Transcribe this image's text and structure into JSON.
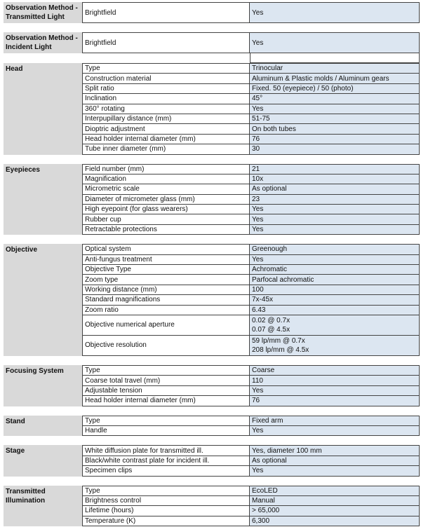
{
  "colors": {
    "label_bg": "#d9d9d9",
    "value_bg": "#dce6f1",
    "border": "#444444"
  },
  "sections": [
    {
      "label": "Observation Method - Transmitted Light",
      "rows": [
        {
          "k": "Brightfield",
          "v": "Yes",
          "tall": true
        }
      ]
    },
    {
      "label": "Observation Method - Incident Light",
      "rows": [
        {
          "k": "Brightfield",
          "v": "Yes",
          "tall": true
        }
      ],
      "spacer": true
    },
    {
      "label": "Head",
      "rows": [
        {
          "k": "Type",
          "v": "Trinocular"
        },
        {
          "k": "Construction material",
          "v": "Aluminum & Plastic molds / Aluminum gears"
        },
        {
          "k": "Split ratio",
          "v": "Fixed. 50 (eyepiece) / 50 (photo)"
        },
        {
          "k": "Inclination",
          "v": "45°"
        },
        {
          "k": "360° rotating",
          "v": "Yes"
        },
        {
          "k": "Interpupillary distance (mm)",
          "v": "51-75"
        },
        {
          "k": "Dioptric adjustment",
          "v": "On both tubes"
        },
        {
          "k": "Head holder internal diameter (mm)",
          "v": "76"
        },
        {
          "k": "Tube inner diameter (mm)",
          "v": "30"
        }
      ]
    },
    {
      "label": "Eyepieces",
      "rows": [
        {
          "k": "Field number (mm)",
          "v": "21"
        },
        {
          "k": "Magnification",
          "v": "10x"
        },
        {
          "k": "Micrometric scale",
          "v": "As optional"
        },
        {
          "k": "Diameter of micrometer glass (mm)",
          "v": "23"
        },
        {
          "k": "High eyepoint (for glass wearers)",
          "v": "Yes"
        },
        {
          "k": "Rubber cup",
          "v": "Yes"
        },
        {
          "k": "Retractable protections",
          "v": "Yes"
        }
      ]
    },
    {
      "label": "Objective",
      "rows": [
        {
          "k": "Optical system",
          "v": "Greenough"
        },
        {
          "k": "Anti-fungus treatment",
          "v": "Yes"
        },
        {
          "k": "Objective Type",
          "v": "Achromatic"
        },
        {
          "k": "Zoom type",
          "v": "Parfocal achromatic"
        },
        {
          "k": "Working distance (mm)",
          "v": "100"
        },
        {
          "k": "Standard magnifications",
          "v": "7x-45x"
        },
        {
          "k": "Zoom ratio",
          "v": "6.43"
        },
        {
          "k": "Objective numerical aperture",
          "v": "0.02 @ 0.7x\n0.07 @ 4.5x",
          "tall": true
        },
        {
          "k": "Objective resolution",
          "v": "59 lp/mm @ 0.7x\n208 lp/mm @ 4.5x",
          "tall": true
        }
      ]
    },
    {
      "label": "Focusing System",
      "rows": [
        {
          "k": "Type",
          "v": "Coarse"
        },
        {
          "k": "Coarse total travel (mm)",
          "v": "110"
        },
        {
          "k": "Adjustable tension",
          "v": "Yes"
        },
        {
          "k": "Head holder internal diameter (mm)",
          "v": "76"
        }
      ]
    },
    {
      "label": "Stand",
      "rows": [
        {
          "k": "Type",
          "v": "Fixed arm"
        },
        {
          "k": "Handle",
          "v": "Yes"
        }
      ]
    },
    {
      "label": "Stage",
      "rows": [
        {
          "k": "White diffusion plate for transmitted ill.",
          "v": "Yes, diameter 100 mm"
        },
        {
          "k": "Black/white contrast plate for incident ill.",
          "v": "As optional"
        },
        {
          "k": "Specimen clips",
          "v": "Yes"
        }
      ]
    },
    {
      "label": "Transmitted Illumination",
      "rows": [
        {
          "k": "Type",
          "v": "EcoLED"
        },
        {
          "k": "Brightness control",
          "v": "Manual"
        },
        {
          "k": "Lifetime (hours)",
          "v": "> 65,000"
        },
        {
          "k": "Temperature (K)",
          "v": "6,300"
        }
      ]
    }
  ]
}
